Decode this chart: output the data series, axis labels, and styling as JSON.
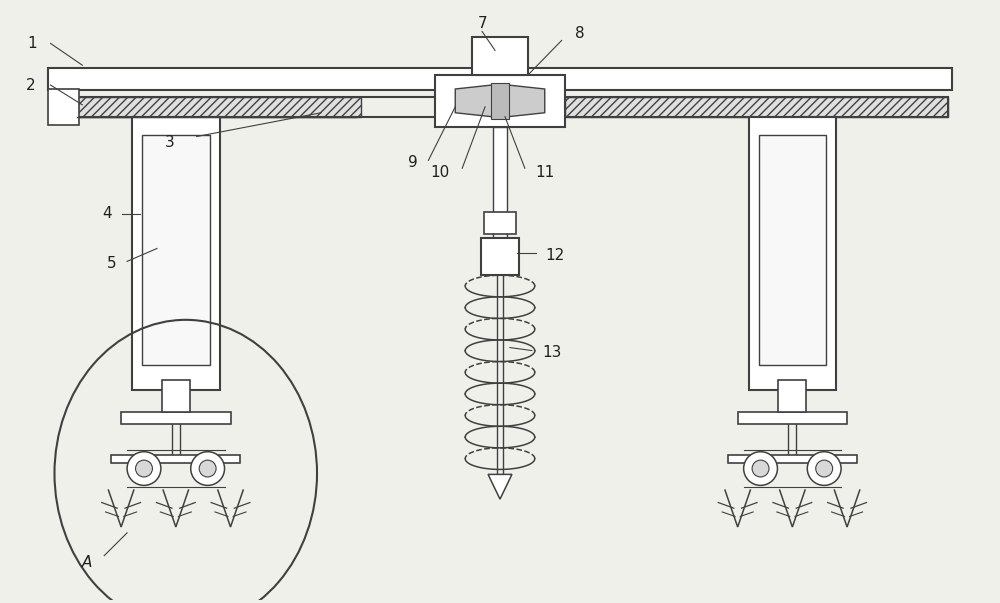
{
  "bg_color": "#f0f0eb",
  "line_color": "#404040",
  "label_color": "#202020",
  "label_fontsize": 11,
  "fig_width": 10.0,
  "fig_height": 6.03
}
